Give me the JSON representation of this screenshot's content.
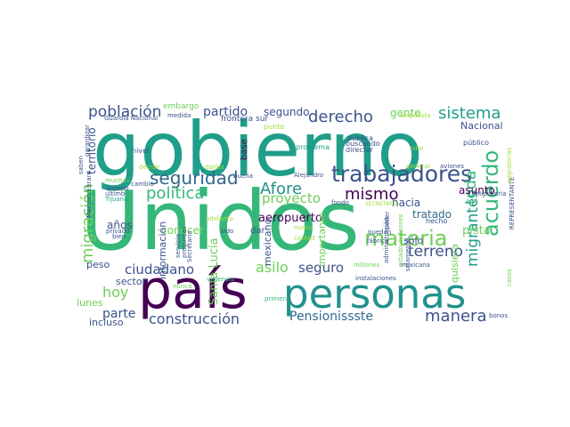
{
  "palette": {
    "dark_purple": "#440154",
    "indigo": "#3b528b",
    "blue": "#31688e",
    "teal": "#21918c",
    "green": "#35b779",
    "lime": "#a0da39",
    "yellow": "#dde318",
    "light_green": "#6ece58",
    "mid_teal": "#1f9e89",
    "purple": "#482878"
  },
  "words": [
    "Unidos",
    "gobierno",
    "país",
    "personas",
    "trabajadores",
    "materia",
    "acuerdo",
    "seguridad",
    "construcción",
    "Pensionissste",
    "manera",
    "población",
    "derecho",
    "sistema",
    "Afore",
    "política",
    "mismo",
    "migración",
    "migrantes",
    "toda",
    "proyecto",
    "terreno",
    "asilo",
    "seguro",
    "ciudadano",
    "hoy",
    "parte",
    "Santa Lucía",
    "aeropuerto",
    "partido",
    "segundo",
    "tratado",
    "pista",
    "gente",
    "Nacional",
    "asunto",
    "años",
    "conocer",
    "hacia",
    "territorio",
    "información",
    "sector",
    "peso",
    "lunes",
    "incluso",
    "mexicano",
    "quisiera",
    "importante",
    "sólo",
    "embargo",
    "frontera sur",
    "base",
    "punto",
    "público",
    "pública",
    "buscando",
    "problema",
    "director",
    "nivel",
    "cambio",
    "tiempo",
    "Marcelo Ebrard",
    "Tijuana",
    "privado",
    "bien",
    "muchas",
    "último",
    "Guardia Nacional",
    "medida",
    "saben",
    "garantizar",
    "respuesta",
    "dar",
    "sido",
    "adelanto",
    "preguntas",
    "Secretaría",
    "servicio",
    "nunca",
    "violencia",
    "primera",
    "instalaciones",
    "millones",
    "mexicana",
    "administración",
    "puedan",
    "fábrica",
    "hecho",
    "poder",
    "REPRESENTANTE",
    "estadounidenses",
    "solamente",
    "casos",
    "bonos",
    "fondo",
    "SECRETARIO",
    "nueva",
    "ciudad",
    "aviones",
    "generar",
    "migratoria",
    "Alejandro",
    "buena",
    "darles",
    "niño",
    "decidir",
    "migratorias"
  ]
}
